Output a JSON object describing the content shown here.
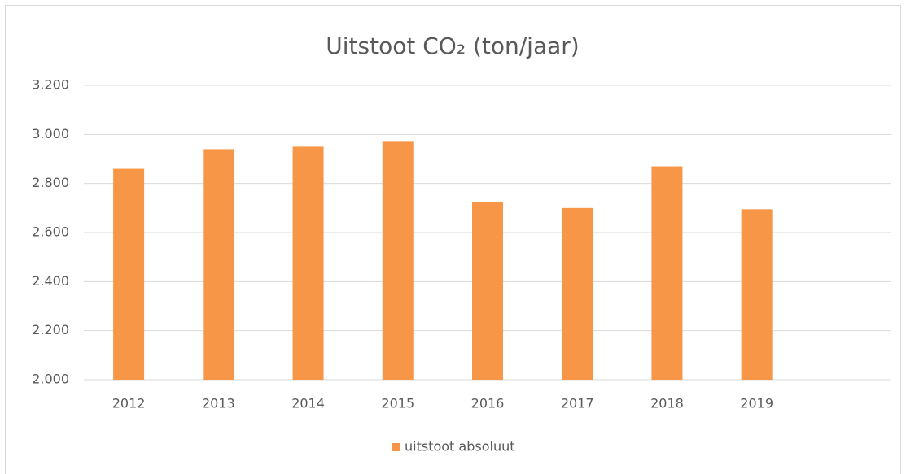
{
  "chart_data": {
    "type": "bar",
    "title": "Uitstoot CO₂ (ton/jaar)",
    "categories": [
      "2012",
      "2013",
      "2014",
      "2015",
      "2016",
      "2017",
      "2018",
      "2019",
      null
    ],
    "series": [
      {
        "name": "uitstoot absoluut",
        "color": "#f79646",
        "values": [
          2860,
          2940,
          2950,
          2970,
          2725,
          2700,
          2870,
          2695,
          null
        ]
      }
    ],
    "ylim": [
      2000,
      3200
    ],
    "yticks": [
      {
        "value": 2000,
        "label": "2.000"
      },
      {
        "value": 2200,
        "label": "2.200"
      },
      {
        "value": 2400,
        "label": "2.400"
      },
      {
        "value": 2600,
        "label": "2.600"
      },
      {
        "value": 2800,
        "label": "2.800"
      },
      {
        "value": 3000,
        "label": "3.000"
      },
      {
        "value": 3200,
        "label": "3.200"
      }
    ],
    "grid": true,
    "legend": "bottom"
  }
}
